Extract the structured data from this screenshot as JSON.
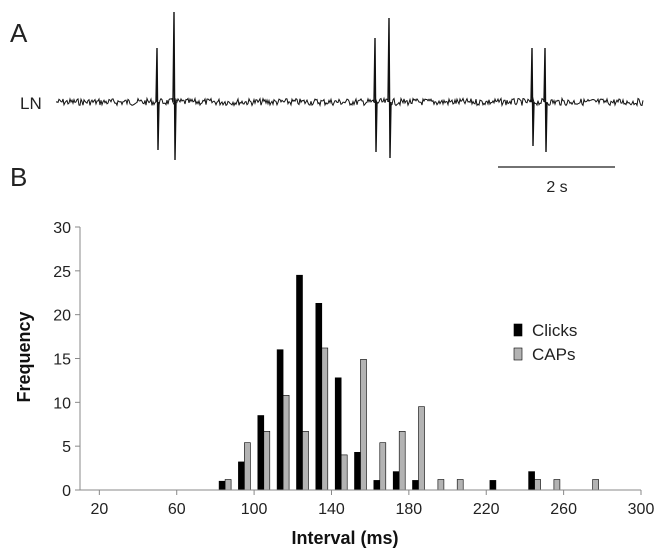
{
  "panel_a": {
    "letter": "A",
    "trace_label": "LN",
    "scale_bar_label": "2 s"
  },
  "panel_b": {
    "letter": "B"
  },
  "chart_data": {
    "type": "bar",
    "title": "",
    "xlabel": "Interval (ms)",
    "ylabel": "Frequency",
    "xlim": [
      10,
      300
    ],
    "ylim": [
      0,
      30
    ],
    "x_ticks": [
      20,
      60,
      100,
      140,
      180,
      220,
      260,
      300
    ],
    "y_ticks": [
      0,
      5,
      10,
      15,
      20,
      25,
      30
    ],
    "bin_width": 10,
    "legend_position": "right",
    "grid": false,
    "series": [
      {
        "name": "Clicks",
        "color": "#000000",
        "points": [
          {
            "x": 80,
            "y": 1
          },
          {
            "x": 90,
            "y": 3.2
          },
          {
            "x": 100,
            "y": 8.5
          },
          {
            "x": 110,
            "y": 16
          },
          {
            "x": 120,
            "y": 24.5
          },
          {
            "x": 130,
            "y": 21.3
          },
          {
            "x": 140,
            "y": 12.8
          },
          {
            "x": 150,
            "y": 4.3
          },
          {
            "x": 160,
            "y": 1.1
          },
          {
            "x": 170,
            "y": 2.1
          },
          {
            "x": 180,
            "y": 1.1
          },
          {
            "x": 220,
            "y": 1.1
          },
          {
            "x": 240,
            "y": 2.1
          }
        ]
      },
      {
        "name": "CAPs",
        "color": "#b3b3b3",
        "points": [
          {
            "x": 80,
            "y": 1.2
          },
          {
            "x": 90,
            "y": 5.4
          },
          {
            "x": 100,
            "y": 6.7
          },
          {
            "x": 110,
            "y": 10.8
          },
          {
            "x": 120,
            "y": 6.7
          },
          {
            "x": 130,
            "y": 16.2
          },
          {
            "x": 140,
            "y": 4.0
          },
          {
            "x": 150,
            "y": 14.9
          },
          {
            "x": 160,
            "y": 5.4
          },
          {
            "x": 170,
            "y": 6.7
          },
          {
            "x": 180,
            "y": 9.5
          },
          {
            "x": 190,
            "y": 1.2
          },
          {
            "x": 200,
            "y": 1.2
          },
          {
            "x": 240,
            "y": 1.2
          },
          {
            "x": 250,
            "y": 1.2
          },
          {
            "x": 270,
            "y": 1.2
          }
        ]
      }
    ]
  }
}
